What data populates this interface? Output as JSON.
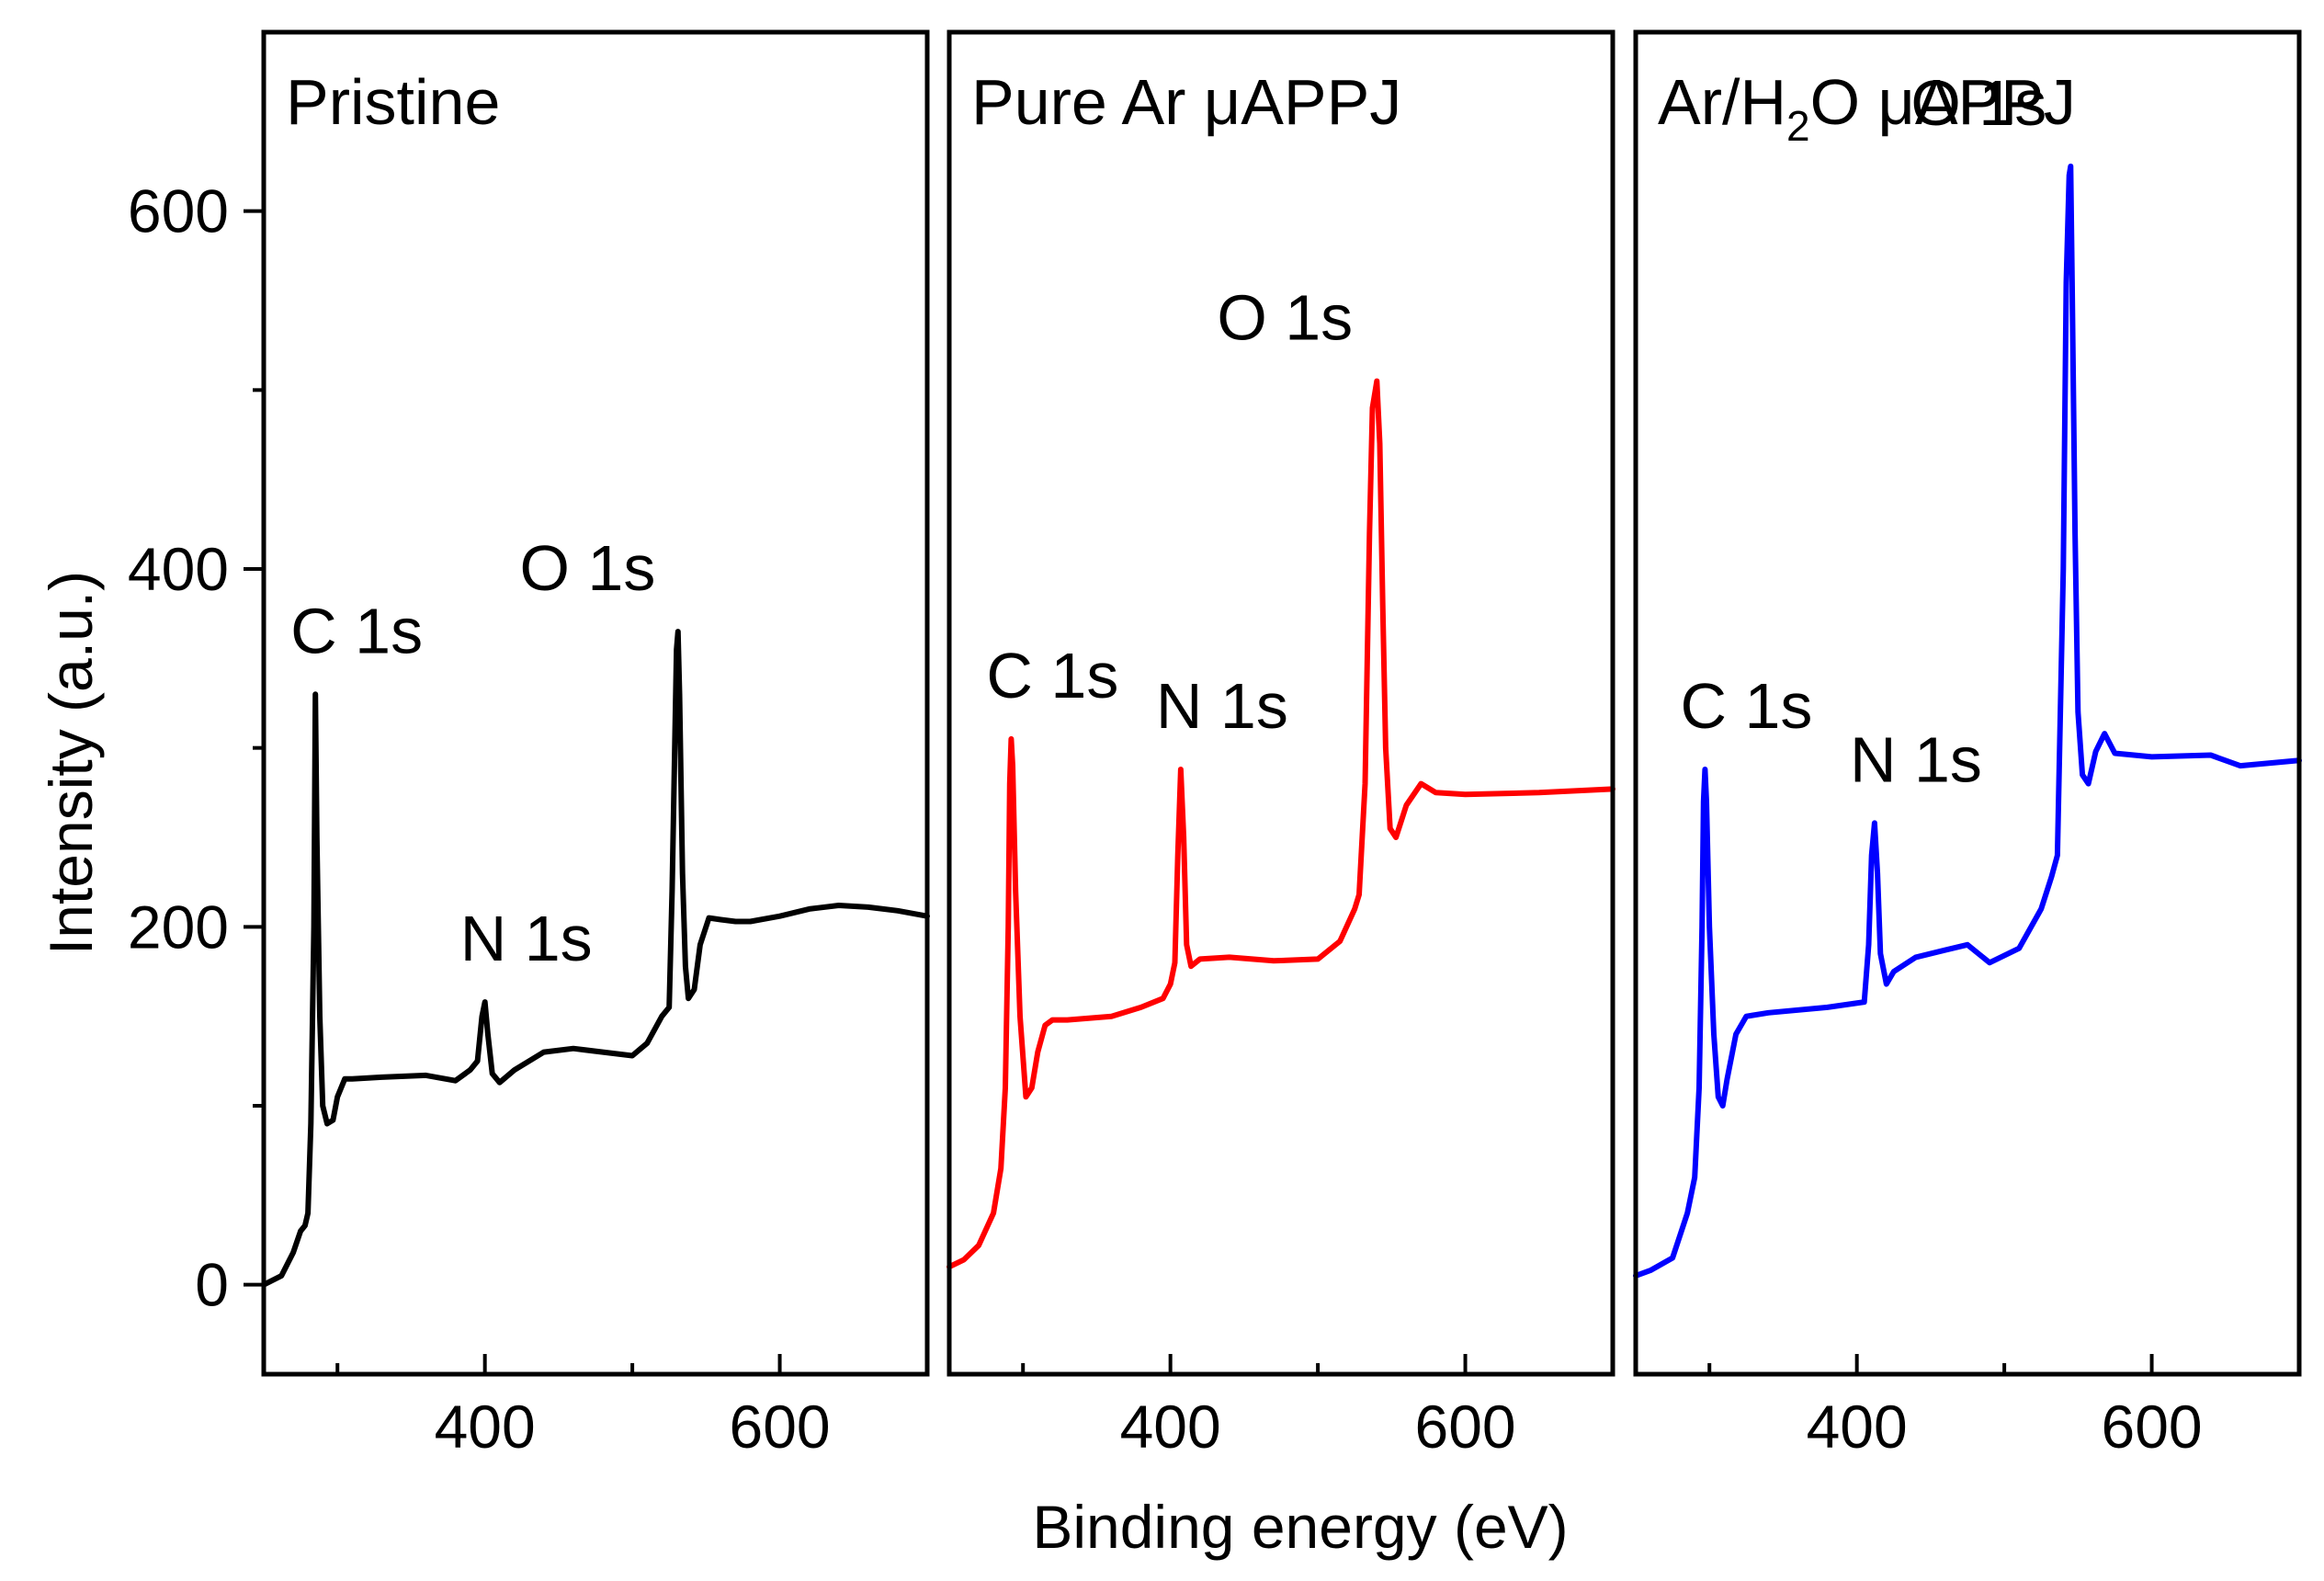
{
  "chart_data": {
    "type": "line",
    "xlabel": "Binding energy (eV)",
    "ylabel": "Intensity (a.u.)",
    "xlim": [
      250,
      700
    ],
    "ylim": [
      -50,
      700
    ],
    "x_ticks": [
      400,
      600
    ],
    "x_minor_ticks": [
      300,
      500
    ],
    "y_ticks": [
      0,
      200,
      400,
      600
    ],
    "y_minor_ticks": [
      100,
      300,
      500
    ],
    "panels": [
      {
        "title": "Pristine",
        "color": "#000000",
        "peaks": [
          {
            "label": "C 1s",
            "x": 285,
            "y": 330
          },
          {
            "label": "N 1s",
            "x": 400,
            "y": 158
          },
          {
            "label": "O 1s",
            "x": 532,
            "y": 365
          }
        ],
        "x": [
          250,
          262,
          270,
          275,
          278,
          280,
          282,
          284,
          285,
          286,
          288,
          290,
          293,
          297,
          300,
          305,
          310,
          330,
          360,
          380,
          390,
          395,
          398,
          400,
          402,
          405,
          410,
          420,
          440,
          460,
          480,
          500,
          510,
          520,
          525,
          527,
          530,
          531,
          532,
          533,
          534,
          536,
          538,
          542,
          546,
          552,
          560,
          570,
          580,
          600,
          620,
          640,
          660,
          680,
          700
        ],
        "values": [
          0,
          5,
          18,
          30,
          33,
          40,
          90,
          200,
          330,
          250,
          150,
          100,
          90,
          92,
          105,
          115,
          115,
          116,
          117,
          114,
          120,
          125,
          150,
          158,
          140,
          118,
          113,
          120,
          130,
          132,
          130,
          128,
          135,
          150,
          155,
          220,
          355,
          365,
          330,
          280,
          230,
          178,
          160,
          165,
          190,
          205,
          204,
          203,
          203,
          206,
          210,
          212,
          211,
          209,
          206
        ]
      },
      {
        "title": "Pure Ar μAPPJ",
        "color": "#ff0000",
        "title_parts": [
          "Pure Ar μAPPJ"
        ],
        "peaks": [
          {
            "label": "C 1s",
            "x": 292,
            "y": 305
          },
          {
            "label": "N 1s",
            "x": 407,
            "y": 288
          },
          {
            "label": "O 1s",
            "x": 540,
            "y": 505
          }
        ],
        "x": [
          250,
          260,
          270,
          280,
          285,
          288,
          290,
          291,
          292,
          293,
          295,
          298,
          302,
          306,
          310,
          315,
          320,
          330,
          360,
          380,
          395,
          400,
          403,
          405,
          407,
          409,
          411,
          414,
          420,
          440,
          470,
          500,
          515,
          525,
          528,
          532,
          535,
          537,
          540,
          542,
          544,
          546,
          549,
          553,
          560,
          570,
          580,
          600,
          650,
          700
        ],
        "values": [
          10,
          14,
          22,
          40,
          65,
          110,
          200,
          280,
          305,
          290,
          220,
          150,
          105,
          110,
          130,
          145,
          148,
          148,
          150,
          155,
          160,
          168,
          180,
          240,
          288,
          250,
          190,
          178,
          182,
          183,
          181,
          182,
          192,
          210,
          218,
          280,
          420,
          490,
          505,
          470,
          380,
          300,
          255,
          250,
          268,
          280,
          275,
          274,
          275,
          277
        ]
      },
      {
        "title": "Ar/H₂O μAPPJ",
        "color": "#0000ff",
        "title_parts": [
          "Ar/H",
          "2",
          "O μAPPJ"
        ],
        "peaks": [
          {
            "label": "C 1s",
            "x": 297,
            "y": 288
          },
          {
            "label": "N 1s",
            "x": 412,
            "y": 258
          },
          {
            "label": "O 1s",
            "x": 545,
            "y": 625
          }
        ],
        "x": [
          250,
          260,
          275,
          285,
          290,
          293,
          295,
          296,
          297,
          298,
          300,
          303,
          306,
          309,
          312,
          318,
          325,
          340,
          380,
          405,
          408,
          410,
          412,
          414,
          416,
          420,
          425,
          440,
          460,
          475,
          490,
          510,
          525,
          532,
          536,
          540,
          542,
          544,
          545,
          546,
          548,
          550,
          553,
          557,
          562,
          568,
          575,
          600,
          640,
          660,
          700
        ],
        "values": [
          5,
          8,
          15,
          40,
          60,
          110,
          200,
          270,
          288,
          270,
          200,
          140,
          105,
          100,
          115,
          140,
          150,
          152,
          155,
          158,
          190,
          240,
          258,
          230,
          185,
          168,
          175,
          183,
          187,
          190,
          180,
          188,
          210,
          228,
          240,
          400,
          560,
          620,
          625,
          560,
          420,
          320,
          285,
          280,
          298,
          308,
          297,
          295,
          296,
          290,
          293
        ]
      }
    ]
  }
}
